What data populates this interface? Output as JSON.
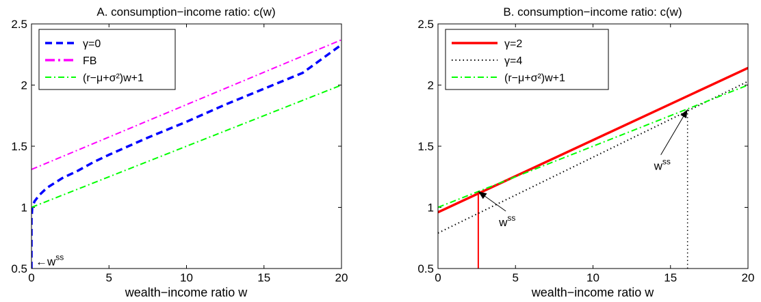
{
  "chart_data": [
    {
      "type": "line",
      "title": "A. consumption−income ratio: c(w)",
      "xlabel": "wealth−income ratio w",
      "ylabel": "",
      "xlim": [
        0,
        20
      ],
      "ylim": [
        0.5,
        2.5
      ],
      "x_ticks": [
        "0",
        "5",
        "10",
        "15",
        "20"
      ],
      "y_ticks": [
        "0.5",
        "1",
        "1.5",
        "2",
        "2.5"
      ],
      "grid": false,
      "legend_position": "top-left",
      "series": [
        {
          "name": "γ=0",
          "color": "#0000ff",
          "style": "dashed",
          "x": [
            0,
            0.001,
            0.05,
            0.2,
            0.5,
            1,
            2,
            3,
            4,
            5,
            7.5,
            10,
            12.5,
            15,
            17.5,
            20
          ],
          "y": [
            0.5,
            0.9,
            1.0,
            1.05,
            1.1,
            1.16,
            1.24,
            1.3,
            1.37,
            1.43,
            1.57,
            1.7,
            1.84,
            1.97,
            2.1,
            2.33
          ]
        },
        {
          "name": "FB",
          "color": "#ff00ff",
          "style": "dashdot",
          "x": [
            0,
            20
          ],
          "y": [
            1.31,
            2.37
          ]
        },
        {
          "name": "(r−μ+σ²)w+1",
          "color": "#00ff00",
          "style": "dashdot",
          "x": [
            0,
            20
          ],
          "y": [
            1.0,
            2.0
          ]
        }
      ],
      "annotations": [
        {
          "text": "←w",
          "sup": "ss",
          "x": 0,
          "y": 0.56
        }
      ]
    },
    {
      "type": "line",
      "title": "B. consumption−income ratio: c(w)",
      "xlabel": "wealth−income ratio w",
      "ylabel": "",
      "xlim": [
        0,
        20
      ],
      "ylim": [
        0.5,
        2.5
      ],
      "x_ticks": [
        "0",
        "5",
        "10",
        "15",
        "20"
      ],
      "y_ticks": [
        "0.5",
        "1",
        "1.5",
        "2",
        "2.5"
      ],
      "grid": false,
      "legend_position": "top-left",
      "series": [
        {
          "name": "γ=2",
          "color": "#ff0000",
          "style": "solid",
          "x": [
            0,
            20
          ],
          "y": [
            0.96,
            2.14
          ]
        },
        {
          "name": "γ=4",
          "color": "#000000",
          "style": "dotted",
          "x": [
            0,
            20
          ],
          "y": [
            0.79,
            2.03
          ]
        },
        {
          "name": "(r−μ+σ²)w+1",
          "color": "#00ff00",
          "style": "dashdot",
          "x": [
            0,
            20
          ],
          "y": [
            1.0,
            2.0
          ]
        }
      ],
      "vlines": [
        {
          "x": 2.6,
          "y0": 0.5,
          "y1": 1.13,
          "color": "#ff0000",
          "style": "solid"
        },
        {
          "x": 16.1,
          "y0": 0.5,
          "y1": 1.8,
          "color": "#000000",
          "style": "dotted"
        }
      ],
      "annotations": [
        {
          "text": "w",
          "sup": "ss",
          "x": 4.2,
          "y": 0.88,
          "arrow_to": [
            2.6,
            1.13
          ]
        },
        {
          "text": "w",
          "sup": "ss",
          "x": 14.2,
          "y": 1.34,
          "arrow_to": [
            16.1,
            1.8
          ]
        }
      ]
    }
  ]
}
